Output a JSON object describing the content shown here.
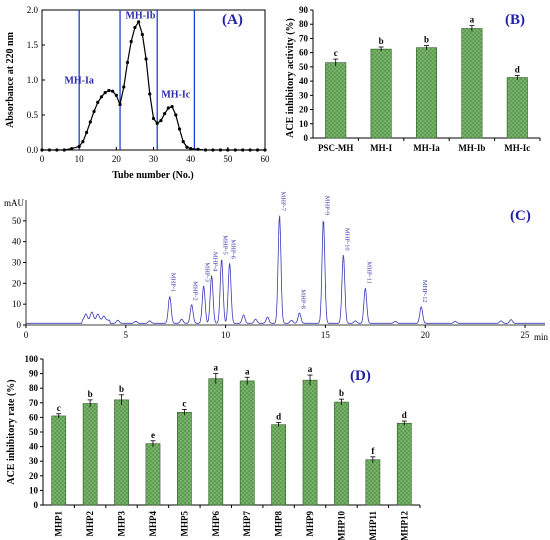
{
  "chart_data": [
    {
      "id": "A",
      "panel_label": "(A)",
      "type": "line",
      "xlabel": "Tube number (No.)",
      "ylabel": "Absorbance at 220 nm",
      "xlim": [
        0,
        60
      ],
      "ylim": [
        0,
        2.0
      ],
      "xticks": [
        "0",
        "10",
        "20",
        "30",
        "40",
        "50",
        "60"
      ],
      "yticks": [
        "0.0",
        "0.5",
        "1.0",
        "1.5",
        "2.0"
      ],
      "x": [
        0,
        2,
        4,
        6,
        8,
        10,
        11,
        12,
        13,
        14,
        15,
        16,
        17,
        18,
        19,
        20,
        21,
        22,
        23,
        24,
        25,
        26,
        27,
        28,
        29,
        30,
        31,
        32,
        33,
        34,
        35,
        36,
        37,
        38,
        39,
        40,
        42,
        44,
        46,
        48,
        50,
        52,
        54,
        56,
        58,
        60
      ],
      "y": [
        0.0,
        0.0,
        0.0,
        0.0,
        0.02,
        0.05,
        0.12,
        0.25,
        0.4,
        0.55,
        0.68,
        0.76,
        0.82,
        0.85,
        0.84,
        0.78,
        0.65,
        0.9,
        1.25,
        1.55,
        1.75,
        1.83,
        1.65,
        1.3,
        0.8,
        0.45,
        0.38,
        0.42,
        0.52,
        0.6,
        0.62,
        0.5,
        0.3,
        0.12,
        0.04,
        0.02,
        0.01,
        0.0,
        0.0,
        0.0,
        0.0,
        0.0,
        0.0,
        0.0,
        0.0,
        0.0
      ],
      "fraction_lines_x": [
        10,
        21,
        31,
        41
      ],
      "fractions": [
        {
          "label": "MH-Ia",
          "x": 10,
          "y": 0.95
        },
        {
          "label": "MH-Ib",
          "x": 26.5,
          "y": 1.88
        },
        {
          "label": "MH-Ic",
          "x": 36,
          "y": 0.75
        }
      ]
    },
    {
      "id": "B",
      "panel_label": "(B)",
      "type": "bar",
      "ylabel": "ACE inhibitory activity (%)",
      "ylim": [
        0,
        90
      ],
      "yticks": [
        "0",
        "10",
        "20",
        "30",
        "40",
        "50",
        "60",
        "70",
        "80",
        "90"
      ],
      "categories": [
        "PSC-MH",
        "MH-I",
        "MH-Ia",
        "MH-Ib",
        "MH-Ic"
      ],
      "values": [
        53,
        62.5,
        63.5,
        77,
        42.5
      ],
      "errors": [
        2.5,
        1.5,
        1.5,
        2.0,
        1.5
      ],
      "letters": [
        "c",
        "b",
        "b",
        "a",
        "d"
      ],
      "color": "#5a9c4c"
    },
    {
      "id": "C",
      "panel_label": "(C)",
      "type": "line",
      "ylabel": "mAU",
      "xlabel": "min",
      "xlim": [
        0,
        26
      ],
      "ylim": [
        0,
        60
      ],
      "xticks": [
        "0",
        "5",
        "10",
        "15",
        "20",
        "25"
      ],
      "yticks": [
        "0",
        "10",
        "20",
        "30",
        "40",
        "50"
      ],
      "color": "#3a3ab8",
      "peaks": [
        {
          "label": "MHP-1",
          "x": 7.2,
          "h": 13
        },
        {
          "label": "MHP-2",
          "x": 8.3,
          "h": 9
        },
        {
          "label": "MHP-3",
          "x": 8.9,
          "h": 18
        },
        {
          "label": "MHP-4",
          "x": 9.3,
          "h": 23
        },
        {
          "label": "MHP-5",
          "x": 9.8,
          "h": 31
        },
        {
          "label": "MHP-6",
          "x": 10.2,
          "h": 29
        },
        {
          "label": "MHP-7",
          "x": 12.7,
          "h": 52
        },
        {
          "label": "MHP-8",
          "x": 13.7,
          "h": 5
        },
        {
          "label": "MHP-9",
          "x": 14.9,
          "h": 50
        },
        {
          "label": "MHP-10",
          "x": 15.9,
          "h": 33
        },
        {
          "label": "MHP-11",
          "x": 17.0,
          "h": 17
        },
        {
          "label": "MHP-12",
          "x": 19.8,
          "h": 8
        }
      ]
    },
    {
      "id": "D",
      "panel_label": "(D)",
      "type": "bar",
      "ylabel": "ACE inhibitory rate (%)",
      "ylim": [
        0,
        100
      ],
      "yticks": [
        "0",
        "10",
        "20",
        "30",
        "40",
        "50",
        "60",
        "70",
        "80",
        "90",
        "100"
      ],
      "categories": [
        "MHP1",
        "MHP2",
        "MHP3",
        "MHP4",
        "MHP5",
        "MHP6",
        "MHP7",
        "MHP8",
        "MHP9",
        "MHP10",
        "MHP11",
        "MHP12"
      ],
      "values": [
        61,
        69.5,
        72,
        42,
        63.5,
        86.5,
        85,
        55,
        85.5,
        70.5,
        31,
        56
      ],
      "errors": [
        1.5,
        2.5,
        3.5,
        2.0,
        2.0,
        3.5,
        2.5,
        1.5,
        3.5,
        2.0,
        2.0,
        1.5
      ],
      "letters": [
        "c",
        "b",
        "b",
        "e",
        "c",
        "a",
        "a",
        "d",
        "a",
        "b",
        "f",
        "d"
      ],
      "color": "#5a9c4c"
    }
  ]
}
